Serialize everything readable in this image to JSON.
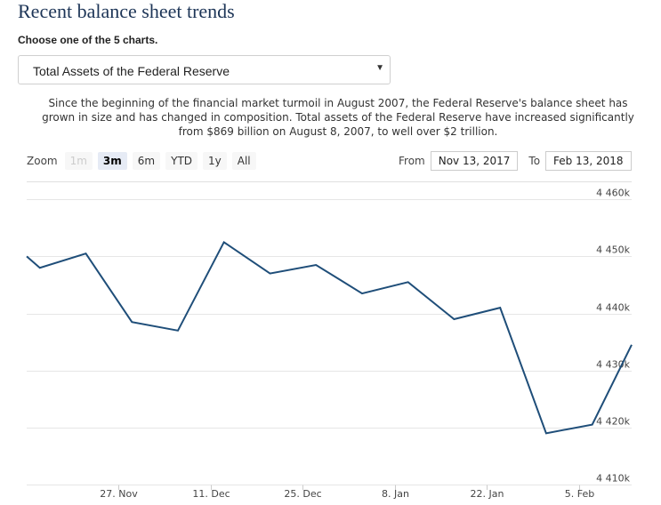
{
  "header": {
    "title": "Recent balance sheet trends"
  },
  "chart_selector": {
    "label": "Choose one of the 5 charts.",
    "selected": "Total Assets of the Federal Reserve",
    "caret_icon": "caret-down-icon"
  },
  "description": "Since the beginning of the financial market turmoil in August 2007, the Federal Reserve's balance sheet has grown in size and has changed in composition. Total assets of the Federal Reserve have increased significantly from $869 billion on August 8, 2007, to well over $2 trillion.",
  "zoom": {
    "label": "Zoom",
    "buttons": [
      {
        "label": "1m",
        "state": "disabled"
      },
      {
        "label": "3m",
        "state": "active"
      },
      {
        "label": "6m",
        "state": "normal"
      },
      {
        "label": "YTD",
        "state": "normal"
      },
      {
        "label": "1y",
        "state": "normal"
      },
      {
        "label": "All",
        "state": "normal"
      }
    ]
  },
  "range": {
    "from_label": "From",
    "from_value": "Nov 13, 2017",
    "to_label": "To",
    "to_value": "Feb 13, 2018"
  },
  "chart_data": {
    "type": "line",
    "line_color": "#1f4e79",
    "grid": true,
    "x_ticks": [
      {
        "label": "27. Nov",
        "date": "2017-11-27"
      },
      {
        "label": "11. Dec",
        "date": "2017-12-11"
      },
      {
        "label": "25. Dec",
        "date": "2017-12-25"
      },
      {
        "label": "8. Jan",
        "date": "2018-01-08"
      },
      {
        "label": "22. Jan",
        "date": "2018-01-22"
      },
      {
        "label": "5. Feb",
        "date": "2018-02-05"
      }
    ],
    "y_ticks": [
      {
        "label": "4 410k",
        "value": 4410000
      },
      {
        "label": "4 420k",
        "value": 4420000
      },
      {
        "label": "4 430k",
        "value": 4430000
      },
      {
        "label": "4 440k",
        "value": 4440000
      },
      {
        "label": "4 450k",
        "value": 4450000
      },
      {
        "label": "4 460k",
        "value": 4460000
      }
    ],
    "ylim": [
      4410000,
      4463000
    ],
    "xlim": [
      "2017-11-13",
      "2018-02-13"
    ],
    "series": [
      {
        "points": [
          {
            "x": "2017-11-13",
            "y": 4450000
          },
          {
            "x": "2017-11-15",
            "y": 4448000
          },
          {
            "x": "2017-11-22",
            "y": 4450500
          },
          {
            "x": "2017-11-29",
            "y": 4438500
          },
          {
            "x": "2017-12-06",
            "y": 4437000
          },
          {
            "x": "2017-12-13",
            "y": 4452500
          },
          {
            "x": "2017-12-20",
            "y": 4447000
          },
          {
            "x": "2017-12-27",
            "y": 4448500
          },
          {
            "x": "2018-01-03",
            "y": 4443500
          },
          {
            "x": "2018-01-10",
            "y": 4445500
          },
          {
            "x": "2018-01-17",
            "y": 4439000
          },
          {
            "x": "2018-01-24",
            "y": 4441000
          },
          {
            "x": "2018-01-31",
            "y": 4419000
          },
          {
            "x": "2018-02-07",
            "y": 4420500
          },
          {
            "x": "2018-02-13",
            "y": 4434500
          }
        ]
      }
    ]
  }
}
